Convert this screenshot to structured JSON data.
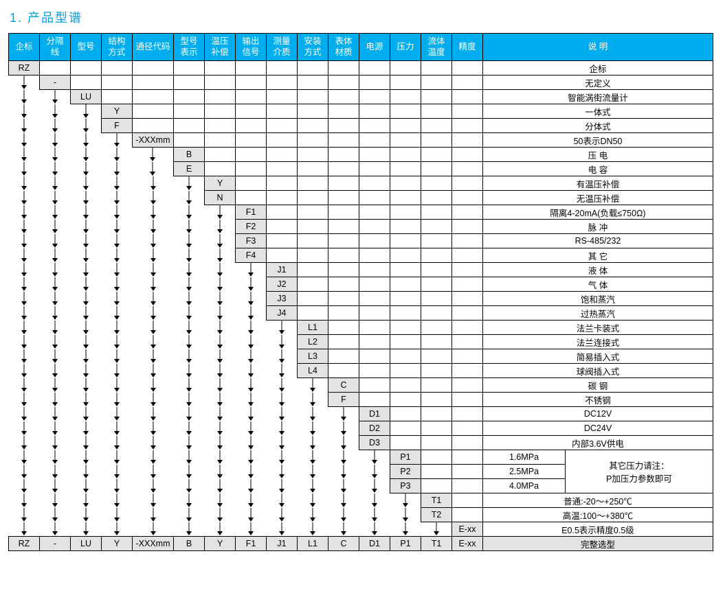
{
  "title": "1. 产品型谱",
  "colors": {
    "header_bg": "#00aeef",
    "header_text": "#ffffff",
    "code_bg": "#e3e3e3",
    "border": "#000000",
    "title": "#009fe3"
  },
  "headers": [
    "企标",
    "分隔\n线",
    "型号",
    "结构\n方式",
    "通径代码",
    "型号\n表示",
    "温压\n补偿",
    "输出\n信号",
    "测量\n介质",
    "安装\n方式",
    "表体\n材质",
    "电源",
    "压力",
    "流体\n温度",
    "精度",
    "说  明"
  ],
  "rows": [
    {
      "col": 0,
      "code": "RZ",
      "desc": "企标"
    },
    {
      "col": 1,
      "code": "-",
      "desc": "无定义"
    },
    {
      "col": 2,
      "code": "LU",
      "desc": "智能涡街流量计"
    },
    {
      "col": 3,
      "code": "Y",
      "desc": "一体式"
    },
    {
      "col": 3,
      "code": "F",
      "desc": "分体式"
    },
    {
      "col": 4,
      "code": "-XXXmm",
      "desc": "50表示DN50"
    },
    {
      "col": 5,
      "code": "B",
      "desc": "压  电"
    },
    {
      "col": 5,
      "code": "E",
      "desc": "电  容"
    },
    {
      "col": 6,
      "code": "Y",
      "desc": "有温压补偿"
    },
    {
      "col": 6,
      "code": "N",
      "desc": "无温压补偿"
    },
    {
      "col": 7,
      "code": "F1",
      "desc": "隔离4-20mA(负载≤750Ω)"
    },
    {
      "col": 7,
      "code": "F2",
      "desc": "脉  冲"
    },
    {
      "col": 7,
      "code": "F3",
      "desc": "RS-485/232"
    },
    {
      "col": 7,
      "code": "F4",
      "desc": "其  它"
    },
    {
      "col": 8,
      "code": "J1",
      "desc": "液  体"
    },
    {
      "col": 8,
      "code": "J2",
      "desc": "气  体"
    },
    {
      "col": 8,
      "code": "J3",
      "desc": "饱和蒸汽"
    },
    {
      "col": 8,
      "code": "J4",
      "desc": "过热蒸汽"
    },
    {
      "col": 9,
      "code": "L1",
      "desc": "法兰卡装式"
    },
    {
      "col": 9,
      "code": "L2",
      "desc": "法兰连接式"
    },
    {
      "col": 9,
      "code": "L3",
      "desc": "简易插入式"
    },
    {
      "col": 9,
      "code": "L4",
      "desc": "球阀插入式"
    },
    {
      "col": 10,
      "code": "C",
      "desc": "碳  钢"
    },
    {
      "col": 10,
      "code": "F",
      "desc": "不锈钢"
    },
    {
      "col": 11,
      "code": "D1",
      "desc": "DC12V"
    },
    {
      "col": 11,
      "code": "D2",
      "desc": "DC24V"
    },
    {
      "col": 11,
      "code": "D3",
      "desc": "内部3.6V供电"
    },
    {
      "col": 12,
      "code": "P1",
      "desc": "1.6MPa",
      "note_start": true,
      "note": "其它压力请注：\nP加压力参数即可"
    },
    {
      "col": 12,
      "code": "P2",
      "desc": "2.5MPa"
    },
    {
      "col": 12,
      "code": "P3",
      "desc": "4.0MPa"
    },
    {
      "col": 13,
      "code": "T1",
      "desc": "普通:-20～+250℃"
    },
    {
      "col": 13,
      "code": "T2",
      "desc": "高温:100～+380℃"
    },
    {
      "col": 14,
      "code": "E-xx",
      "desc": "E0.5表示精度0.5级"
    }
  ],
  "example": {
    "cells": [
      "RZ",
      "-",
      "LU",
      "Y",
      "-XXXmm",
      "B",
      "Y",
      "F1",
      "J1",
      "L1",
      "C",
      "D1",
      "P1",
      "T1",
      "E-xx"
    ],
    "desc": "完整选型"
  }
}
